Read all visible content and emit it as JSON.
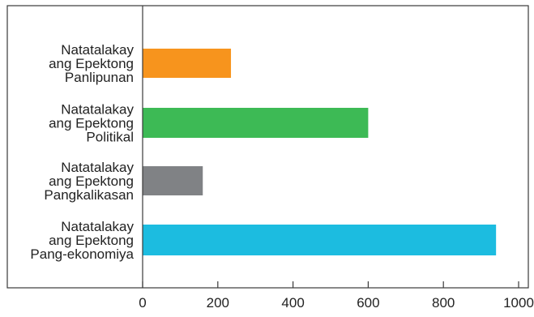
{
  "chart_data": {
    "type": "bar",
    "orientation": "horizontal",
    "categories": [
      [
        "Natatalakay",
        "ang Epektong",
        "Panlipunan"
      ],
      [
        "Natatalakay",
        "ang Epektong",
        "Politikal"
      ],
      [
        "Natatalakay",
        "ang Epektong",
        "Pangkalikasan"
      ],
      [
        "Natatalakay",
        "ang Epektong",
        "Pang-ekonomiya"
      ]
    ],
    "values": [
      235,
      600,
      160,
      940
    ],
    "colors": [
      "#f7941d",
      "#3dba55",
      "#808285",
      "#1cbce0"
    ],
    "title": "",
    "xlabel": "",
    "ylabel": "",
    "xlim": [
      0,
      1000
    ],
    "xticks": [
      "0",
      "200",
      "400",
      "600",
      "800",
      "1000"
    ],
    "grid": false,
    "legend": "none"
  }
}
